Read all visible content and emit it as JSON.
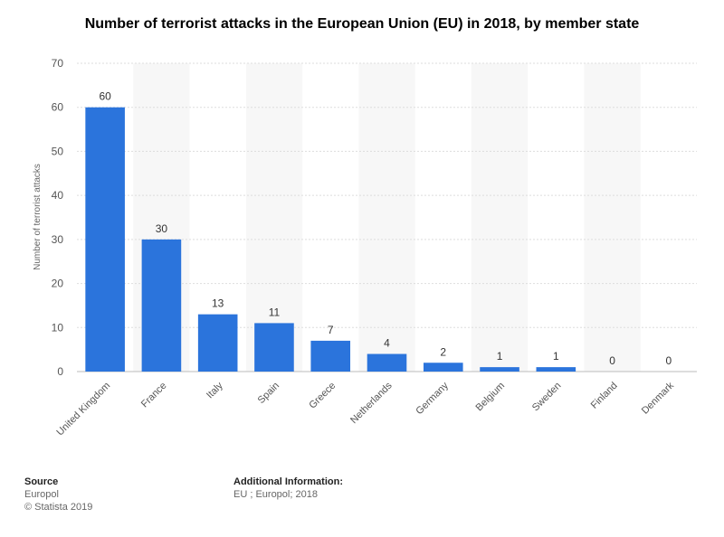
{
  "chart_data": {
    "type": "bar",
    "title": "Number of terrorist attacks in the European Union (EU) in 2018, by member state",
    "xlabel": "",
    "ylabel": "Number of terrorist attacks",
    "categories": [
      "United Kingdom",
      "France",
      "Italy",
      "Spain",
      "Greece",
      "Netherlands",
      "Germany",
      "Belgium",
      "Sweden",
      "Finland",
      "Denmark"
    ],
    "values": [
      60,
      30,
      13,
      11,
      7,
      4,
      2,
      1,
      1,
      0,
      0
    ],
    "ylim": [
      0,
      70
    ],
    "yticks": [
      0,
      10,
      20,
      30,
      40,
      50,
      60,
      70
    ],
    "grid": true,
    "bar_color": "#2b74dc",
    "alt_band_color": "#f7f7f7"
  },
  "footer": {
    "source_heading": "Source",
    "source_lines": [
      "Europol",
      "© Statista 2019"
    ],
    "info_heading": "Additional Information:",
    "info_text": "EU ; Europol; 2018"
  }
}
